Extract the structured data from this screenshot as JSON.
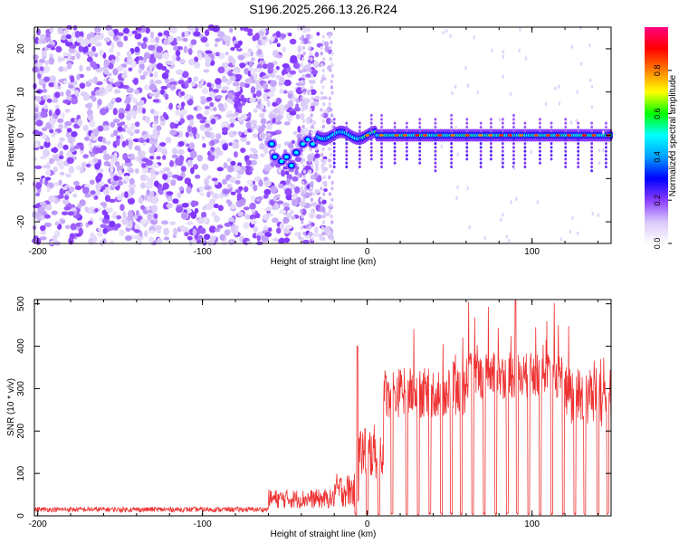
{
  "title": "S196.2025.266.13.26.R24",
  "chart_data": [
    {
      "type": "heatmap",
      "xlabel": "Height of straight line (km)",
      "ylabel": "Frequency (Hz)",
      "xlim": [
        -202,
        148
      ],
      "ylim": [
        -25,
        25
      ],
      "xticks": [
        -200,
        -100,
        0,
        100
      ],
      "yticks": [
        -20,
        -10,
        0,
        10,
        20
      ],
      "colorbar": {
        "label": "Normalized spectral amplitude",
        "range": [
          0,
          1
        ],
        "ticks": [
          0.0,
          0.2,
          0.4,
          0.6,
          0.8
        ],
        "colors": [
          "#ffffff",
          "#d8c8f8",
          "#8a3cff",
          "#0000ff",
          "#00a0ff",
          "#00ffff",
          "#00ff00",
          "#ffff00",
          "#ff8000",
          "#ff0000",
          "#ff0080"
        ]
      },
      "features": [
        {
          "name": "noise",
          "x_range": [
            -202,
            -25
          ],
          "freq_range": [
            -25,
            25
          ],
          "amplitude": 0.1
        },
        {
          "name": "carrier",
          "x_range": [
            -30,
            148
          ],
          "freq": 0,
          "amplitude": 0.85
        },
        {
          "name": "blob",
          "x": -78,
          "freq": 7,
          "amplitude": 0.2
        },
        {
          "name": "transition",
          "x_range": [
            -60,
            -30
          ],
          "freq_range": [
            -7,
            0
          ],
          "amplitude": 0.5
        }
      ]
    },
    {
      "type": "line",
      "xlabel": "Height of straight line (km)",
      "ylabel": "SNR (10 * v/v)",
      "xlim": [
        -202,
        148
      ],
      "ylim": [
        0,
        510
      ],
      "xticks": [
        -200,
        -100,
        0,
        100
      ],
      "yticks": [
        0,
        100,
        200,
        300,
        400,
        500
      ],
      "color": "#ee3333",
      "segments": [
        {
          "x_range": [
            -202,
            -60
          ],
          "mean": 15,
          "spread": 12
        },
        {
          "x_range": [
            -60,
            -20
          ],
          "mean": 40,
          "spread": 45
        },
        {
          "x_range": [
            -20,
            -5
          ],
          "mean": 60,
          "spread": 80
        },
        {
          "x_range": [
            -5,
            10
          ],
          "mean": 150,
          "spread": 130
        },
        {
          "x_range": [
            10,
            60
          ],
          "mean": 290,
          "spread": 120
        },
        {
          "x_range": [
            60,
            120
          ],
          "mean": 330,
          "spread": 110
        },
        {
          "x_range": [
            120,
            148
          ],
          "mean": 280,
          "spread": 150
        }
      ],
      "dropouts": [
        -7,
        0,
        7,
        15,
        24,
        31,
        38,
        45,
        51,
        57,
        64,
        71,
        78,
        85,
        91,
        98,
        105,
        112,
        119,
        126,
        132,
        140,
        146
      ],
      "spike": {
        "x": -6,
        "y": 400
      },
      "peak": {
        "x": 90,
        "y": 510
      }
    }
  ]
}
